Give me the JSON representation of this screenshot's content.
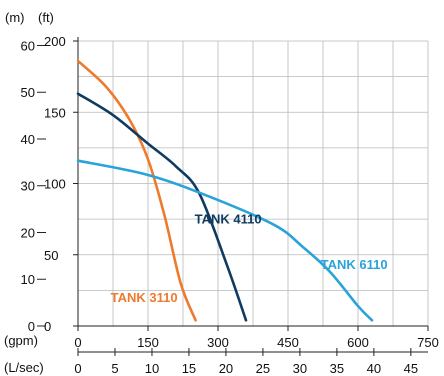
{
  "chart_data": {
    "type": "line",
    "units": {
      "head_m": "(m)",
      "head_ft": "(ft)",
      "flow_gpm": "(gpm)",
      "flow_lsec": "(L/sec)"
    },
    "axes": {
      "y_m_ticks": [
        "0",
        "10",
        "20",
        "30",
        "40",
        "50",
        "60"
      ],
      "y_ft_ticks": [
        "0",
        "50",
        "100",
        "150",
        "200"
      ],
      "x_gpm_ticks": [
        "0",
        "150",
        "300",
        "450",
        "600",
        "750"
      ],
      "x_lsec_ticks": [
        "0",
        "5",
        "10",
        "15",
        "20",
        "25",
        "30",
        "35",
        "40",
        "45"
      ],
      "x_range_gpm": [
        0,
        750
      ],
      "y_range_ft": [
        0,
        200
      ],
      "grid": true
    },
    "series": [
      {
        "name": "TANK 3110",
        "color": "#ee7a2e",
        "label_pos": {
          "x_gpm": 70,
          "y_ft": 17
        },
        "points": [
          [
            0,
            186
          ],
          [
            60,
            168
          ],
          [
            110,
            145
          ],
          [
            150,
            117
          ],
          [
            185,
            78
          ],
          [
            220,
            30
          ],
          [
            252,
            4
          ]
        ]
      },
      {
        "name": "TANK 4110",
        "color": "#0f3b60",
        "label_pos": {
          "x_gpm": 250,
          "y_ft": 72
        },
        "points": [
          [
            0,
            163
          ],
          [
            75,
            148
          ],
          [
            150,
            128
          ],
          [
            210,
            112
          ],
          [
            260,
            93
          ],
          [
            320,
            42
          ],
          [
            360,
            4
          ]
        ]
      },
      {
        "name": "TANK 6110",
        "color": "#29a3d8",
        "label_pos": {
          "x_gpm": 520,
          "y_ft": 40
        },
        "points": [
          [
            0,
            116
          ],
          [
            150,
            106
          ],
          [
            280,
            91
          ],
          [
            420,
            71
          ],
          [
            480,
            56
          ],
          [
            540,
            38
          ],
          [
            600,
            14
          ],
          [
            630,
            4
          ]
        ]
      }
    ]
  }
}
